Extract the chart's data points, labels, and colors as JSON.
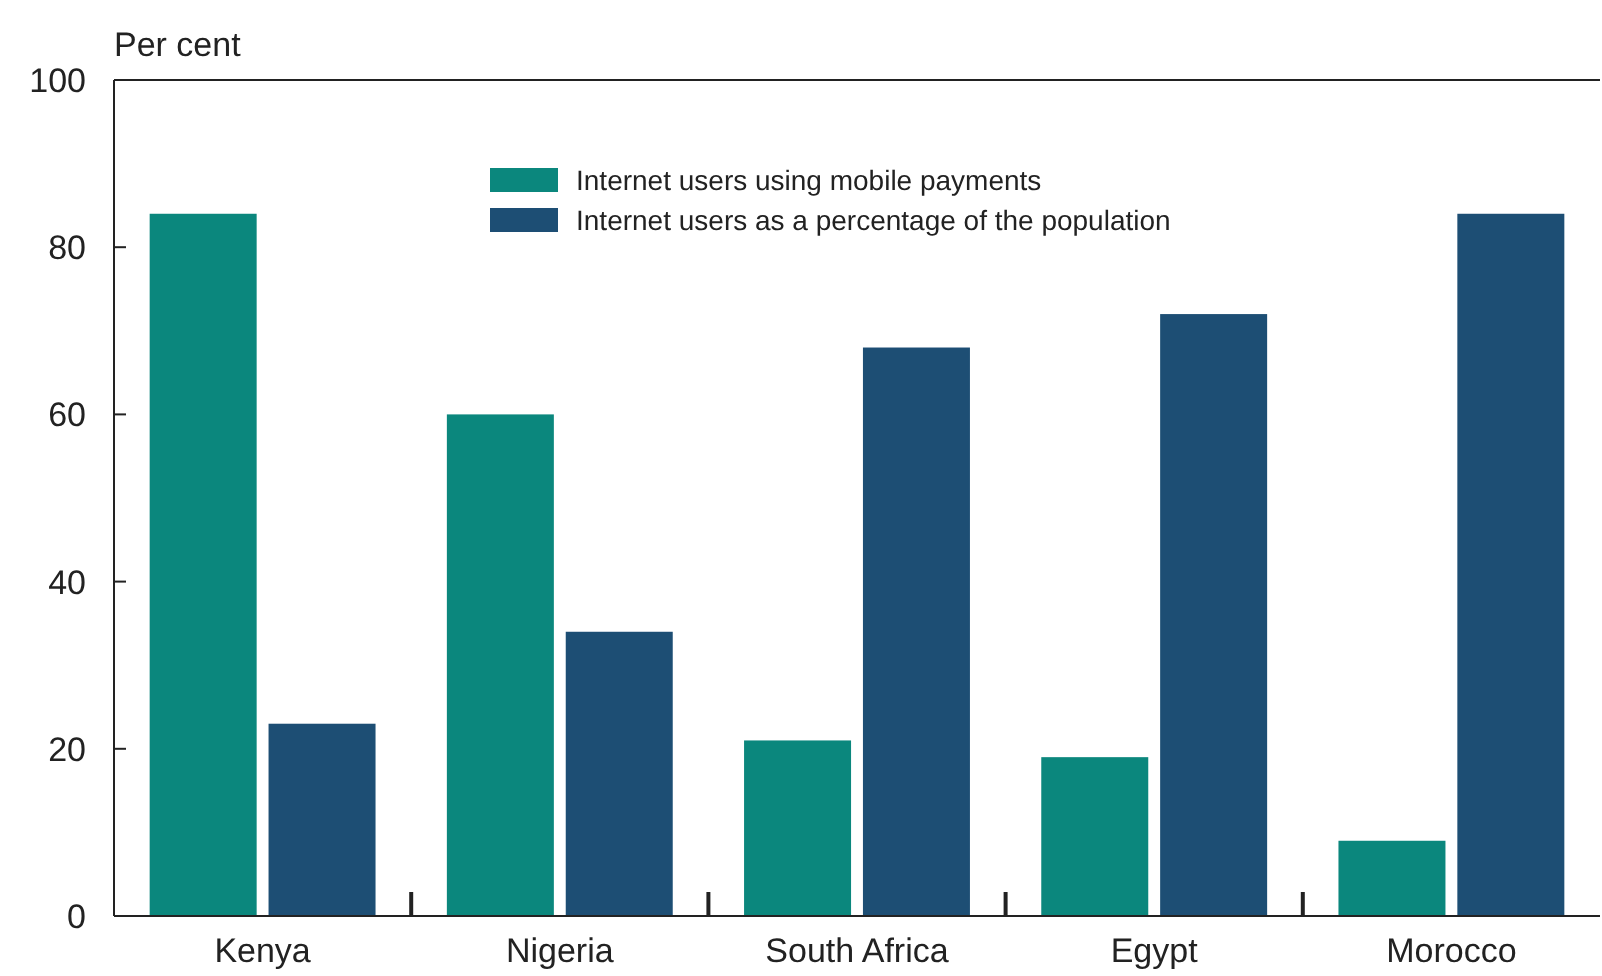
{
  "chart_data": {
    "type": "bar",
    "ylabel": "Per cent",
    "categories": [
      "Kenya",
      "Nigeria",
      "South Africa",
      "Egypt",
      "Morocco"
    ],
    "series": [
      {
        "name": "Internet users using mobile payments",
        "color": "#0b877d",
        "values": [
          84,
          60,
          21,
          19,
          9
        ]
      },
      {
        "name": "Internet users as a percentage of the population",
        "color": "#1d4e74",
        "values": [
          23,
          34,
          68,
          72,
          84
        ]
      }
    ],
    "ylim": [
      0,
      100
    ],
    "yticks": [
      0,
      20,
      40,
      60,
      80,
      100
    ],
    "grid": false,
    "legend": "top"
  }
}
